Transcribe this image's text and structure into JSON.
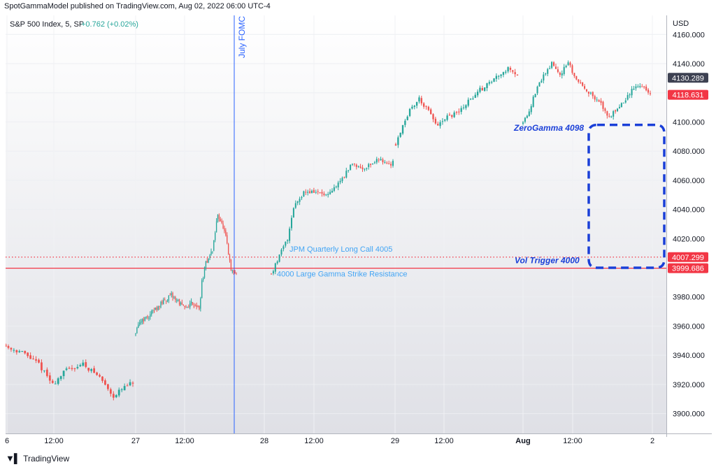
{
  "publisher_line": "SpotGammaModel published on TradingView.com, Aug 02, 2022 06:00 UTC-4",
  "footer_brand": "TradingView",
  "footer_logo_icon": "tradingview-logo-icon",
  "colors": {
    "up": "#26a69a",
    "down": "#ef5350",
    "event_line": "#2962ff",
    "dashed_box": "#1a3fd8",
    "annotation_text": "#42a5f5",
    "level_red": "#f23645"
  },
  "chart_data": {
    "type": "candlestick",
    "symbol_line": {
      "name": "S&P 500 Index, 5, SP",
      "change": "+0.762 (+0.02%)"
    },
    "currency": "USD",
    "timeframe": "5",
    "y_axis": {
      "range": [
        3885,
        4165
      ],
      "ticks": [
        3900,
        3920,
        3940,
        3960,
        3980,
        4000,
        4020,
        4040,
        4060,
        4080,
        4100,
        4120,
        4140,
        4160
      ],
      "tick_labels": [
        "3900.000",
        "3920.000",
        "3940.000",
        "3960.000",
        "3980.000",
        "4000.000",
        "4020.000",
        "4040.000",
        "4060.000",
        "4080.000",
        "4100.000",
        "4120.000",
        "4140.000",
        "4160.000"
      ]
    },
    "x_axis": {
      "labels": [
        "6",
        "12:00",
        "27",
        "12:00",
        "28",
        "12:00",
        "29",
        "12:00",
        "Aug",
        "12:00",
        "2"
      ],
      "bold": [
        false,
        false,
        false,
        false,
        false,
        false,
        false,
        false,
        true,
        false,
        false
      ]
    },
    "price_labels": [
      {
        "value": 4130.289,
        "text": "4130.289",
        "style": "dark"
      },
      {
        "value": 4118.631,
        "text": "4118.631",
        "style": "red"
      },
      {
        "value": 4007.299,
        "text": "4007.299",
        "style": "red"
      },
      {
        "value": 3999.686,
        "text": "3999.686",
        "style": "red"
      }
    ],
    "event_line": {
      "label": "July FOMC"
    },
    "horizontal_levels": [
      {
        "value": 4007.299,
        "style": "dotted"
      },
      {
        "value": 3999.686,
        "style": "solid"
      }
    ],
    "annotations": [
      {
        "text": "JPM Quarterly Long Call 4005",
        "value": 4011
      },
      {
        "text": "4000 Large Gamma Strike Resistance",
        "value": 3994
      },
      {
        "text": "ZeroGamma 4098",
        "value": 4094
      },
      {
        "text": "Vol Trigger 4000",
        "value": 4003
      }
    ],
    "dashed_box": {
      "top": 4098,
      "bottom": 4000
    },
    "sessions": [
      {
        "label": "Jul 26 session (end)",
        "anchors": [
          [
            0,
            3946
          ],
          [
            6,
            3942
          ],
          [
            12,
            3934
          ],
          [
            17,
            3920
          ],
          [
            22,
            3930
          ],
          [
            28,
            3934
          ],
          [
            34,
            3925
          ],
          [
            39,
            3912
          ],
          [
            43,
            3918
          ],
          [
            46,
            3921
          ]
        ]
      },
      {
        "label": "Jul 27",
        "anchors": [
          [
            0,
            3955
          ],
          [
            4,
            3964
          ],
          [
            9,
            3966
          ],
          [
            14,
            3971
          ],
          [
            20,
            3976
          ],
          [
            27,
            3981
          ],
          [
            32,
            3977
          ],
          [
            37,
            3972
          ],
          [
            42,
            3976
          ],
          [
            46,
            3974
          ],
          [
            48,
            3971
          ],
          [
            50,
            3990
          ],
          [
            53,
            4003
          ],
          [
            58,
            4012
          ],
          [
            62,
            4037
          ],
          [
            65,
            4030
          ],
          [
            68,
            4021
          ],
          [
            72,
            3998
          ],
          [
            76,
            3996
          ]
        ]
      },
      {
        "label": "Jul 28",
        "anchors": [
          [
            0,
            3996
          ],
          [
            4,
            4008
          ],
          [
            8,
            4020
          ],
          [
            11,
            4042
          ],
          [
            16,
            4052
          ],
          [
            22,
            4052
          ],
          [
            28,
            4049
          ],
          [
            33,
            4058
          ],
          [
            37,
            4065
          ],
          [
            40,
            4072
          ],
          [
            45,
            4068
          ],
          [
            50,
            4072
          ],
          [
            54,
            4075
          ],
          [
            58,
            4070
          ],
          [
            60,
            4073
          ]
        ]
      },
      {
        "label": "Jul 29",
        "anchors": [
          [
            0,
            4085
          ],
          [
            3,
            4098
          ],
          [
            6,
            4108
          ],
          [
            10,
            4116
          ],
          [
            14,
            4107
          ],
          [
            18,
            4097
          ],
          [
            22,
            4103
          ],
          [
            27,
            4107
          ],
          [
            31,
            4114
          ],
          [
            36,
            4122
          ],
          [
            41,
            4128
          ],
          [
            45,
            4134
          ],
          [
            49,
            4137
          ],
          [
            52,
            4132
          ]
        ]
      },
      {
        "label": "Aug 1",
        "anchors": [
          [
            0,
            4100
          ],
          [
            3,
            4108
          ],
          [
            6,
            4120
          ],
          [
            10,
            4132
          ],
          [
            14,
            4140
          ],
          [
            18,
            4133
          ],
          [
            22,
            4140
          ],
          [
            26,
            4129
          ],
          [
            30,
            4124
          ],
          [
            34,
            4117
          ],
          [
            38,
            4112
          ],
          [
            42,
            4103
          ],
          [
            46,
            4110
          ],
          [
            50,
            4115
          ],
          [
            54,
            4124
          ],
          [
            58,
            4125
          ],
          [
            62,
            4119
          ]
        ]
      }
    ]
  }
}
